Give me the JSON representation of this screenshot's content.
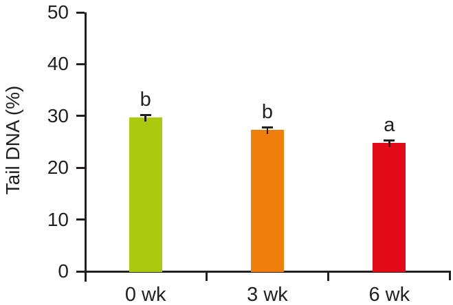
{
  "chart_data": {
    "type": "bar",
    "title": "",
    "xlabel": "",
    "ylabel": "Tail DNA (%)",
    "categories": [
      "0 wk",
      "3 wk",
      "6 wk"
    ],
    "values": [
      29.7,
      27.3,
      24.8
    ],
    "errors": [
      0.5,
      0.5,
      0.5
    ],
    "sig_letters": [
      "b",
      "b",
      "a"
    ],
    "bar_colors": [
      "#abc90e",
      "#f07e0c",
      "#e30a18"
    ],
    "ylim": [
      0,
      50
    ],
    "yticks": [
      0,
      10,
      20,
      30,
      40,
      50
    ],
    "grid": false,
    "legend": false,
    "axis_color": "#231f20",
    "background": "#ffffff"
  }
}
